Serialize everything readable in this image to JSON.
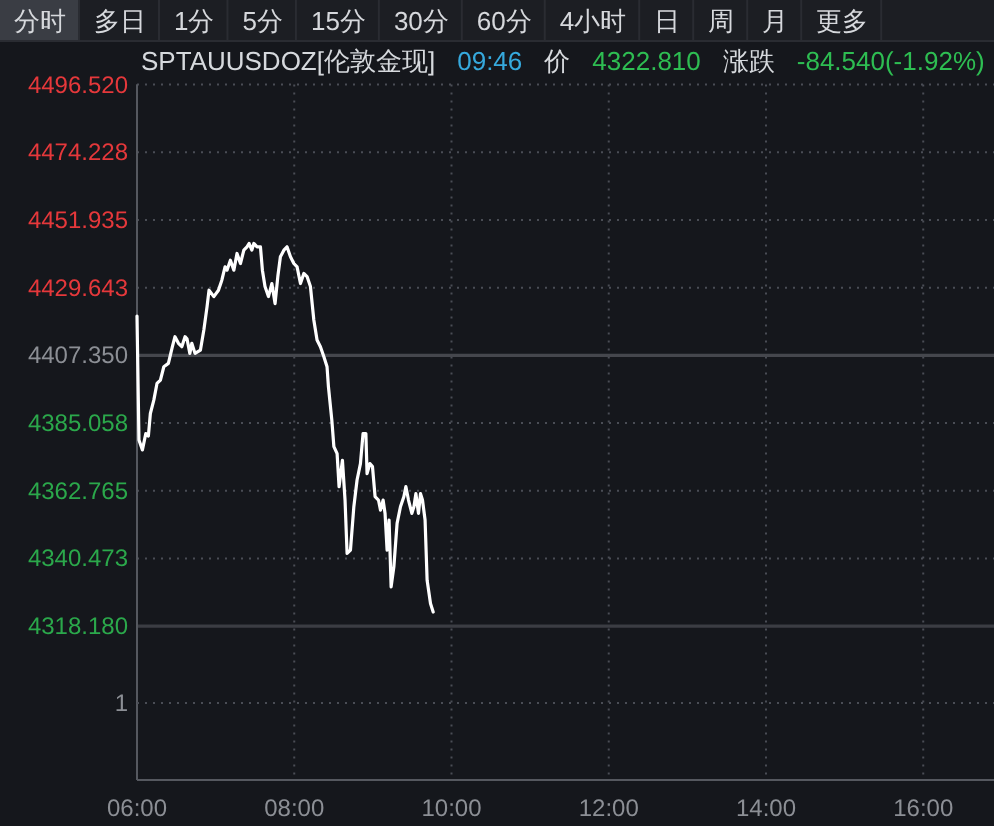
{
  "chart_data": [
    {
      "type": "other",
      "annotations": [
        "分时",
        "多日",
        "1分",
        "5分",
        "15分",
        "30分",
        "60分",
        "4小时",
        "日",
        "周",
        "月",
        "更多"
      ]
    },
    {
      "type": "line",
      "title": "SPTAUUSDOZ[伦敦金现]",
      "subtitle": "09:46",
      "annotations": [
        "价",
        "4322.810",
        "涨跌",
        "-84.540(-1.92%)"
      ],
      "x": [
        6.0,
        6.025,
        6.069,
        6.112,
        6.145,
        6.17,
        6.214,
        6.254,
        6.298,
        6.341,
        6.399,
        6.45,
        6.483,
        6.527,
        6.57,
        6.611,
        6.636,
        6.672,
        6.697,
        6.738,
        6.807,
        6.85,
        6.891,
        6.916,
        6.977,
        7.036,
        7.079,
        7.12,
        7.145,
        7.188,
        7.232,
        7.272,
        7.316,
        7.359,
        7.399,
        7.425,
        7.461,
        7.486,
        7.527,
        7.57,
        7.595,
        7.628,
        7.672,
        7.715,
        7.756,
        7.791,
        7.824,
        7.868,
        7.908,
        7.952,
        7.995,
        8.036,
        8.079,
        8.122,
        8.163,
        8.206,
        8.249,
        8.29,
        8.333,
        8.377,
        8.417,
        8.435,
        8.478,
        8.504,
        8.545,
        8.57,
        8.613,
        8.646,
        8.672,
        8.715,
        8.758,
        8.799,
        8.842,
        8.875,
        8.911,
        8.926,
        8.962,
        8.995,
        9.028,
        9.071,
        9.097,
        9.13,
        9.155,
        9.181,
        9.206,
        9.232,
        9.267,
        9.308,
        9.351,
        9.394,
        9.42,
        9.453,
        9.496,
        9.522,
        9.547,
        9.58,
        9.606,
        9.631,
        9.664,
        9.69,
        9.733,
        9.767
      ],
      "values": [
        4420.3,
        4379.5,
        4376.2,
        4381.6,
        4380.8,
        4388.2,
        4392.6,
        4398.1,
        4399.2,
        4403.6,
        4404.7,
        4410.2,
        4413.5,
        4411.3,
        4410.2,
        4413.5,
        4412.8,
        4408.0,
        4411.3,
        4408.0,
        4409.1,
        4415.7,
        4423.4,
        4428.8,
        4426.7,
        4428.8,
        4432.1,
        4436.5,
        4435.4,
        4438.7,
        4435.4,
        4440.9,
        4437.6,
        4442.0,
        4443.1,
        4444.2,
        4442.0,
        4444.2,
        4443.1,
        4443.1,
        4435.4,
        4430.0,
        4426.7,
        4431.0,
        4424.4,
        4433.3,
        4439.8,
        4442.0,
        4443.1,
        4439.8,
        4437.6,
        4436.5,
        4431.0,
        4434.3,
        4433.3,
        4430.0,
        4419.0,
        4412.4,
        4410.2,
        4406.9,
        4403.6,
        4397.0,
        4386.0,
        4377.3,
        4375.0,
        4364.1,
        4372.8,
        4359.7,
        4342.1,
        4343.2,
        4357.5,
        4366.3,
        4371.7,
        4381.6,
        4381.6,
        4368.4,
        4371.7,
        4370.7,
        4360.8,
        4359.7,
        4356.4,
        4359.7,
        4355.3,
        4343.2,
        4353.1,
        4331.1,
        4337.7,
        4352.0,
        4357.5,
        4360.8,
        4364.1,
        4359.7,
        4355.3,
        4357.5,
        4361.8,
        4355.3,
        4361.8,
        4359.7,
        4353.1,
        4333.3,
        4325.6,
        4322.8
      ],
      "color": "#ffffff",
      "xlim": [
        6,
        16.9
      ],
      "xticks": [
        {
          "value": 6,
          "label": "06:00"
        },
        {
          "value": 8,
          "label": "08:00"
        },
        {
          "value": 10,
          "label": "10:00"
        },
        {
          "value": 12,
          "label": "12:00"
        },
        {
          "value": 14,
          "label": "14:00"
        },
        {
          "value": 16,
          "label": "16:00"
        }
      ],
      "ylim": [
        4267.5,
        4496.52
      ],
      "yticks": [
        {
          "value": 4496.52,
          "label": "4496.520"
        },
        4474.228,
        4451.935,
        4429.643,
        {
          "value": 4407.35,
          "label": "4407.350"
        },
        4385.058,
        4362.765,
        4340.473,
        {
          "value": 4318.18,
          "label": "4318.180"
        }
      ],
      "grid": true,
      "ref_lines": [
        {
          "axis": "y",
          "value": 4407.35,
          "color": "#45474d"
        },
        {
          "axis": "y",
          "value": 4318.18,
          "color": "#3b3d43"
        }
      ]
    },
    {
      "type": "other",
      "annotations": [
        "1"
      ]
    }
  ]
}
